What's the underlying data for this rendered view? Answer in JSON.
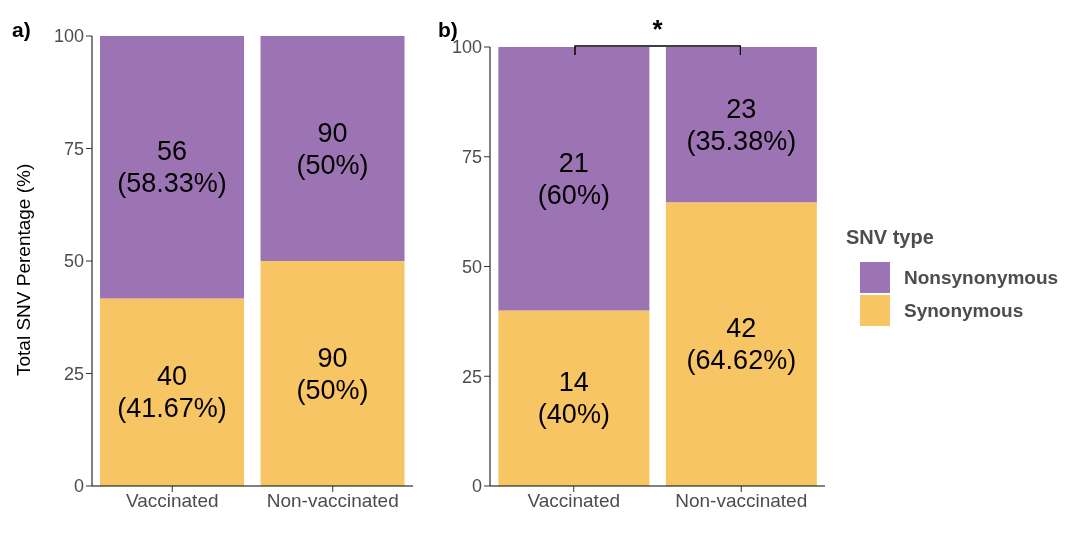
{
  "chart_data": [
    {
      "type": "bar",
      "title": "a)",
      "ylabel": "Total SNV Perentage (%)",
      "categories": [
        "Vaccinated",
        "Non-vaccinated"
      ],
      "stacked": true,
      "ylim": [
        0,
        100
      ],
      "yticks": [
        0,
        25,
        50,
        75,
        100
      ],
      "grid": false,
      "series": [
        {
          "color": "#f8c564",
          "values": [
            41.67,
            50
          ],
          "value_labels": [
            "40\n(41.67%)",
            "90\n(50%)"
          ]
        },
        {
          "color": "#9d74b3",
          "values": [
            58.33,
            50
          ],
          "value_labels": [
            "56\n(58.33%)",
            "90\n(50%)"
          ]
        }
      ]
    },
    {
      "type": "bar",
      "title": "b)",
      "categories": [
        "Vaccinated",
        "Non-vaccinated"
      ],
      "stacked": true,
      "ylim": [
        0,
        100
      ],
      "yticks": [
        0,
        25,
        50,
        75,
        100
      ],
      "grid": false,
      "legend": "right",
      "legend_title": "SNV type",
      "annotations": [
        "*"
      ],
      "series": [
        {
          "name": "Synonymous",
          "color": "#f8c564",
          "values": [
            40,
            64.62
          ],
          "value_labels": [
            "14\n(40%)",
            "42\n(64.62%)"
          ]
        },
        {
          "name": "Nonsynonymous",
          "color": "#9d74b3",
          "values": [
            60,
            35.38
          ],
          "value_labels": [
            "21\n(60%)",
            "23\n(35.38%)"
          ]
        }
      ]
    }
  ]
}
